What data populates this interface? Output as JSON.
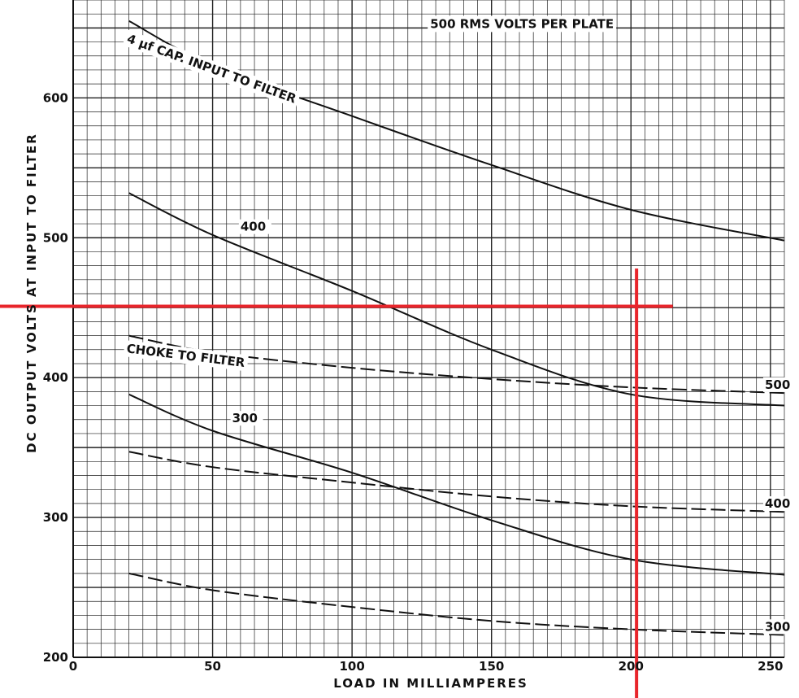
{
  "chart_data": {
    "type": "line",
    "title": "",
    "xlabel": "LOAD IN MILLIAMPERES",
    "ylabel": "DC OUTPUT VOLTS AT INPUT TO FILTER",
    "xlim": [
      0,
      255
    ],
    "ylim": [
      200,
      670
    ],
    "grid": true,
    "x_ticks": [
      {
        "value": 0,
        "label": "0"
      },
      {
        "value": 50,
        "label": "50"
      },
      {
        "value": 100,
        "label": "100"
      },
      {
        "value": 150,
        "label": "150"
      },
      {
        "value": 200,
        "label": "200"
      },
      {
        "value": 250,
        "label": "250"
      }
    ],
    "y_ticks": [
      {
        "value": 200,
        "label": "200"
      },
      {
        "value": 300,
        "label": "300"
      },
      {
        "value": 400,
        "label": "400"
      },
      {
        "value": 500,
        "label": "500"
      },
      {
        "value": 600,
        "label": "600"
      }
    ],
    "annotations": [
      {
        "text": "500 RMS VOLTS PER PLATE",
        "x": 128,
        "y": 650,
        "angle": 0
      },
      {
        "text": "4 µf CAP. INPUT TO FILTER",
        "x": 19,
        "y": 640,
        "angle": 20
      },
      {
        "text": "CHOKE TO FILTER",
        "x": 19,
        "y": 418,
        "angle": 7
      }
    ],
    "series": [
      {
        "group": "cap-input",
        "name": "500",
        "style": "solid",
        "label_pos": null,
        "x": [
          20,
          50,
          100,
          150,
          200,
          255
        ],
        "y": [
          655,
          623,
          587,
          552,
          520,
          498
        ]
      },
      {
        "group": "cap-input",
        "name": "400",
        "style": "solid",
        "label_pos": [
          60,
          505
        ],
        "x": [
          20,
          50,
          100,
          150,
          200,
          255
        ],
        "y": [
          532,
          502,
          462,
          420,
          388,
          380
        ]
      },
      {
        "group": "cap-input",
        "name": "300",
        "style": "solid",
        "label_pos": [
          57,
          368
        ],
        "x": [
          20,
          50,
          100,
          150,
          200,
          255
        ],
        "y": [
          388,
          362,
          332,
          298,
          270,
          259
        ]
      },
      {
        "group": "choke-input",
        "name": "500",
        "style": "dashed",
        "label_pos": [
          248,
          392
        ],
        "x": [
          20,
          50,
          100,
          150,
          200,
          255
        ],
        "y": [
          430,
          418,
          407,
          399,
          393,
          389
        ]
      },
      {
        "group": "choke-input",
        "name": "400",
        "style": "dashed",
        "label_pos": [
          248,
          307
        ],
        "x": [
          20,
          50,
          100,
          150,
          200,
          255
        ],
        "y": [
          347,
          336,
          325,
          315,
          308,
          304
        ]
      },
      {
        "group": "choke-input",
        "name": "300",
        "style": "dashed",
        "label_pos": [
          248,
          219
        ],
        "x": [
          20,
          50,
          100,
          150,
          200,
          255
        ],
        "y": [
          260,
          248,
          236,
          226,
          220,
          216
        ]
      }
    ],
    "reference_lines": [
      {
        "orientation": "horizontal",
        "value": 451,
        "from": 0,
        "to": 215,
        "color": "#e8252b"
      },
      {
        "orientation": "vertical",
        "value": 202,
        "from": 200,
        "to": 478,
        "color": "#e8252b"
      }
    ]
  }
}
